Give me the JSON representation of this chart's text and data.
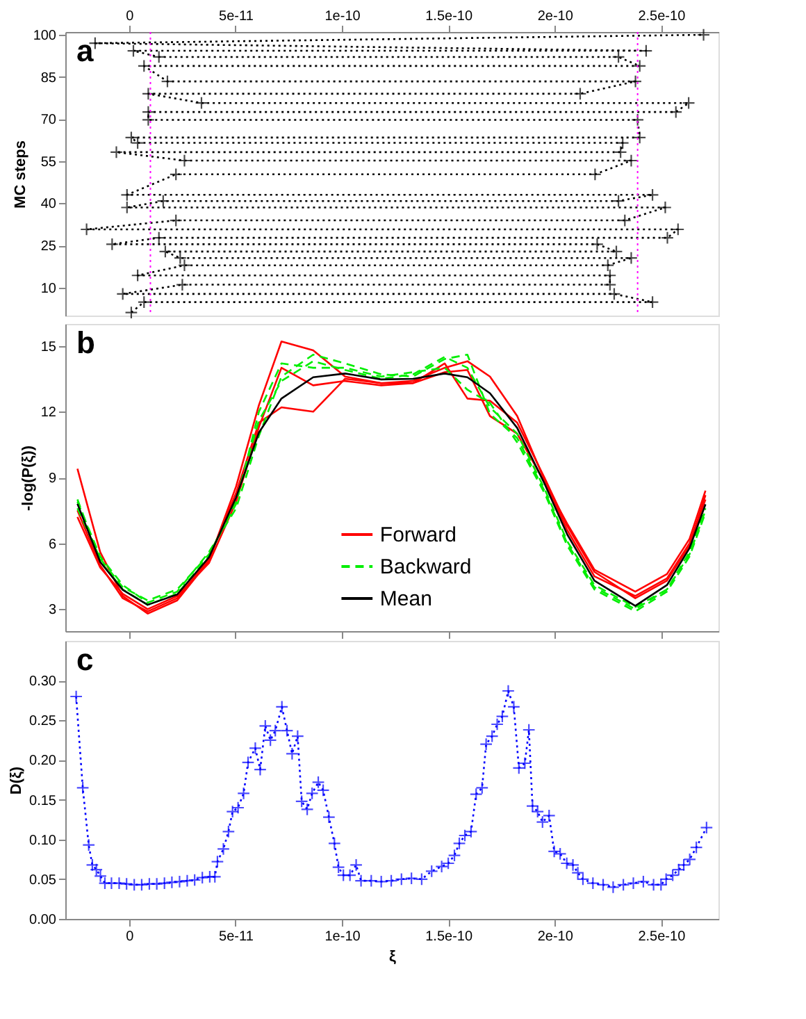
{
  "chart_data": [
    {
      "type": "line",
      "ylabel": "MC steps",
      "annotations": [
        "a"
      ],
      "marker": "cross",
      "line_style": "dotted",
      "xlim": [
        -3e-11,
        2.77e-10
      ],
      "xticks": [
        0,
        5e-11,
        1e-10,
        1.5e-10,
        2e-10,
        2.5e-10
      ],
      "ylim": [
        0,
        101
      ],
      "yticks": [
        10,
        25,
        40,
        55,
        70,
        85,
        100
      ],
      "ref_lines": [
        {
          "axis": "x",
          "value": 1e-11,
          "color": "#ff00ff",
          "line_style": "dotted"
        },
        {
          "axis": "x",
          "value": 2.39e-10,
          "color": "#ff00ff",
          "line_style": "dotted"
        }
      ],
      "series": [
        {
          "color": "#000000",
          "x": [
            1e-12,
            7e-12,
            2.46e-10,
            2.28e-10,
            -3e-12,
            2.5e-11,
            2.26e-10,
            2.26e-10,
            4e-12,
            2.6e-11,
            2.25e-10,
            2.36e-10,
            2.4e-11,
            1.7e-11,
            2.29e-10,
            2.2e-10,
            -8e-12,
            1.4e-11,
            2.53e-10,
            2.58e-10,
            -2e-11,
            2.2e-11,
            2.33e-10,
            2.52e-10,
            -1e-12,
            1.6e-11,
            2.3e-10,
            2.46e-10,
            -1e-12,
            2.2e-11,
            2.19e-10,
            2.36e-10,
            2.6e-11,
            -6e-12,
            2.31e-10,
            2.32e-10,
            4e-12,
            1e-12,
            2.4e-10,
            2.39e-10,
            9e-12,
            9e-12,
            2.57e-10,
            2.63e-10,
            3.4e-11,
            9e-12,
            2.12e-10,
            2.38e-10,
            1.8e-11,
            7e-12,
            2.4e-10,
            2.3e-10,
            1.4e-11,
            2e-12,
            2.43e-10,
            -1.6e-11,
            2.7e-10
          ],
          "values": [
            1.1,
            4.8,
            4.8,
            7.7,
            7.7,
            11.0,
            11.0,
            14.3,
            14.3,
            17.9,
            17.9,
            20.5,
            20.5,
            22.8,
            22.8,
            25.4,
            25.4,
            27.7,
            27.7,
            30.7,
            30.7,
            33.9,
            33.9,
            38.5,
            38.5,
            40.8,
            40.8,
            43.0,
            43.0,
            50.3,
            50.3,
            55.2,
            55.2,
            58.2,
            58.2,
            61.5,
            61.5,
            63.4,
            63.4,
            69.7,
            69.7,
            72.5,
            72.5,
            75.7,
            75.7,
            79.0,
            79.0,
            83.4,
            83.4,
            88.9,
            88.9,
            92.1,
            92.1,
            94.3,
            94.3,
            97.0,
            100.0
          ]
        }
      ]
    },
    {
      "type": "line",
      "ylabel": "-log(P(ξ))",
      "annotations": [
        "b"
      ],
      "legend": "bottom",
      "tick_labels": "y",
      "xlim": [
        -3e-11,
        2.77e-10
      ],
      "xticks": [
        0,
        5e-11,
        1e-10,
        1.5e-10,
        2e-10,
        2.5e-10
      ],
      "ylim": [
        2,
        16
      ],
      "yticks": [
        3,
        6,
        9,
        12,
        15
      ],
      "x": [
        -2.43e-11,
        -1.36e-11,
        -3e-12,
        8.7e-12,
        2.26e-11,
        3.75e-11,
        5.03e-11,
        6.1e-11,
        7.16e-11,
        8.65e-11,
        1.015e-10,
        1.185e-10,
        1.334e-10,
        1.483e-10,
        1.59e-10,
        1.696e-10,
        1.824e-10,
        1.952e-10,
        2.059e-10,
        2.187e-10,
        2.379e-10,
        2.528e-10,
        2.634e-10,
        2.709e-10
      ],
      "series": [
        {
          "name": "Forward",
          "color": "#ff0000",
          "line_style": "solid",
          "values": [
            9.4,
            5.6,
            3.6,
            2.8,
            3.4,
            5.2,
            8.6,
            12.3,
            15.2,
            14.8,
            13.6,
            13.3,
            13.4,
            14.0,
            14.3,
            13.6,
            11.8,
            8.9,
            6.6,
            4.5,
            3.6,
            4.4,
            6.0,
            8.0
          ]
        },
        {
          "color": "#ff0000",
          "line_style": "solid",
          "values": [
            7.5,
            5.0,
            3.5,
            2.9,
            3.5,
            5.3,
            8.3,
            11.5,
            12.2,
            12.0,
            13.5,
            13.3,
            13.3,
            14.2,
            12.6,
            12.5,
            11.5,
            9.0,
            6.8,
            4.7,
            3.5,
            4.3,
            5.9,
            8.2
          ]
        },
        {
          "color": "#ff0000",
          "line_style": "solid",
          "values": [
            7.2,
            4.9,
            3.7,
            3.0,
            3.6,
            5.1,
            7.9,
            11.3,
            14.0,
            13.2,
            13.4,
            13.2,
            13.3,
            13.8,
            13.9,
            11.8,
            11.0,
            8.8,
            6.9,
            4.8,
            3.8,
            4.6,
            6.2,
            8.4
          ]
        },
        {
          "name": "Backward",
          "color": "#00ee00",
          "line_style": "dashed",
          "values": [
            7.9,
            5.4,
            4.1,
            3.3,
            3.8,
            5.6,
            7.6,
            10.9,
            13.6,
            14.6,
            14.2,
            13.7,
            13.6,
            14.4,
            14.6,
            11.9,
            10.8,
            8.4,
            6.0,
            4.0,
            3.0,
            3.9,
            5.5,
            7.5
          ]
        },
        {
          "color": "#00ee00",
          "line_style": "dashed",
          "values": [
            7.6,
            5.3,
            4.0,
            3.4,
            3.9,
            5.5,
            7.8,
            12.0,
            14.2,
            14.0,
            14.0,
            13.6,
            13.8,
            14.0,
            13.0,
            12.4,
            10.6,
            8.3,
            5.9,
            3.9,
            2.9,
            3.8,
            5.4,
            7.4
          ]
        },
        {
          "color": "#00ee00",
          "line_style": "dashed",
          "values": [
            8.0,
            5.2,
            3.9,
            3.2,
            3.7,
            5.4,
            8.0,
            11.6,
            13.4,
            14.3,
            13.9,
            13.5,
            13.7,
            14.5,
            14.0,
            12.2,
            11.0,
            8.5,
            6.1,
            4.1,
            3.1,
            3.9,
            5.6,
            7.6
          ]
        },
        {
          "name": "Mean",
          "color": "#000000",
          "line_style": "solid",
          "values": [
            7.8,
            5.15,
            3.88,
            3.2,
            3.67,
            5.36,
            8.1,
            11.05,
            12.6,
            13.57,
            13.74,
            13.47,
            13.5,
            13.74,
            13.57,
            12.84,
            11.26,
            8.73,
            6.41,
            4.3,
            3.15,
            4.1,
            5.78,
            7.78
          ]
        }
      ]
    },
    {
      "type": "line",
      "ylabel": "D(ξ)",
      "xlabel": "ξ",
      "annotations": [
        "c"
      ],
      "marker": "cross",
      "line_style": "dotted",
      "xlim": [
        -3e-11,
        2.77e-10
      ],
      "xticks": [
        0,
        5e-11,
        1e-10,
        1.5e-10,
        2e-10,
        2.5e-10
      ],
      "ylim": [
        0,
        0.35
      ],
      "yticks": [
        {
          "value": 0,
          "label": "0.00"
        },
        {
          "value": 0.05,
          "label": "0.05"
        },
        {
          "value": 0.1,
          "label": "0.10"
        },
        {
          "value": 0.15,
          "label": "0.15"
        },
        {
          "value": 0.2,
          "label": "0.20"
        },
        {
          "value": 0.25,
          "label": "0.25"
        },
        {
          "value": 0.3,
          "label": "0.30"
        }
      ],
      "series": [
        {
          "color": "#0000ff",
          "x": [
            -2.49e-11,
            -2.18e-11,
            -1.9e-11,
            -1.73e-11,
            -1.54e-11,
            -1.35e-11,
            -1.14e-11,
            -8.3e-12,
            -4.7e-12,
            -1.2e-12,
            2.4e-12,
            5.9e-12,
            9.5e-12,
            1.3e-11,
            1.66e-11,
            2.01e-11,
            2.37e-11,
            2.73e-11,
            3.08e-11,
            3.44e-11,
            3.79e-11,
            4.03e-11,
            4.15e-11,
            4.43e-11,
            4.67e-11,
            4.86e-11,
            5.12e-11,
            5.38e-11,
            5.59e-11,
            5.93e-11,
            6.16e-11,
            6.4e-11,
            6.64e-11,
            6.87e-11,
            7.18e-11,
            7.42e-11,
            7.66e-11,
            7.92e-11,
            8.11e-11,
            8.37e-11,
            8.6e-11,
            8.89e-11,
            9.12e-11,
            9.39e-11,
            9.65e-11,
            9.84e-11,
            1.007e-10,
            1.038e-10,
            1.067e-10,
            1.09e-10,
            1.138e-10,
            1.185e-10,
            1.232e-10,
            1.28e-10,
            1.327e-10,
            1.375e-10,
            1.422e-10,
            1.469e-10,
            1.5e-10,
            1.529e-10,
            1.552e-10,
            1.578e-10,
            1.607e-10,
            1.631e-10,
            1.659e-10,
            1.678e-10,
            1.706e-10,
            1.73e-10,
            1.754e-10,
            1.782e-10,
            1.808e-10,
            1.832e-10,
            1.86e-10,
            1.879e-10,
            1.896e-10,
            1.92e-10,
            1.943e-10,
            1.974e-10,
            1.998e-10,
            2.026e-10,
            2.057e-10,
            2.086e-10,
            2.109e-10,
            2.133e-10,
            2.18e-10,
            2.228e-10,
            2.275e-10,
            2.323e-10,
            2.37e-10,
            2.417e-10,
            2.465e-10,
            2.5e-10,
            2.524e-10,
            2.555e-10,
            2.583e-10,
            2.607e-10,
            2.635e-10,
            2.666e-10,
            2.714e-10
          ],
          "values": [
            0.28,
            0.165,
            0.093,
            0.068,
            0.062,
            0.054,
            0.045,
            0.045,
            0.045,
            0.044,
            0.043,
            0.043,
            0.044,
            0.044,
            0.045,
            0.046,
            0.047,
            0.048,
            0.049,
            0.052,
            0.053,
            0.053,
            0.072,
            0.088,
            0.11,
            0.135,
            0.14,
            0.158,
            0.197,
            0.215,
            0.188,
            0.243,
            0.225,
            0.237,
            0.267,
            0.237,
            0.208,
            0.23,
            0.148,
            0.138,
            0.158,
            0.172,
            0.162,
            0.128,
            0.095,
            0.065,
            0.055,
            0.055,
            0.068,
            0.048,
            0.048,
            0.047,
            0.048,
            0.05,
            0.051,
            0.05,
            0.06,
            0.066,
            0.07,
            0.08,
            0.095,
            0.105,
            0.11,
            0.157,
            0.165,
            0.22,
            0.23,
            0.245,
            0.255,
            0.287,
            0.267,
            0.19,
            0.196,
            0.238,
            0.142,
            0.135,
            0.122,
            0.13,
            0.085,
            0.082,
            0.07,
            0.068,
            0.058,
            0.05,
            0.045,
            0.043,
            0.04,
            0.043,
            0.045,
            0.047,
            0.043,
            0.043,
            0.05,
            0.055,
            0.062,
            0.068,
            0.075,
            0.09,
            0.115
          ]
        }
      ]
    }
  ]
}
